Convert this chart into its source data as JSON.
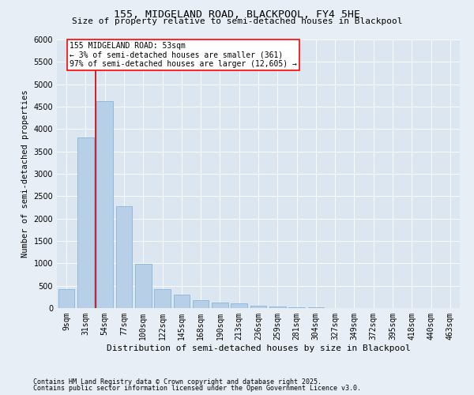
{
  "title1": "155, MIDGELAND ROAD, BLACKPOOL, FY4 5HE",
  "title2": "Size of property relative to semi-detached houses in Blackpool",
  "xlabel": "Distribution of semi-detached houses by size in Blackpool",
  "ylabel": "Number of semi-detached properties",
  "bar_color": "#b8cfe8",
  "bar_edge_color": "#7aadd4",
  "marker_color": "#cc0000",
  "marker_value": 53,
  "annotation_title": "155 MIDGELAND ROAD: 53sqm",
  "annotation_line1": "← 3% of semi-detached houses are smaller (361)",
  "annotation_line2": "97% of semi-detached houses are larger (12,605) →",
  "footnote1": "Contains HM Land Registry data © Crown copyright and database right 2025.",
  "footnote2": "Contains public sector information licensed under the Open Government Licence v3.0.",
  "bin_labels": [
    "9sqm",
    "31sqm",
    "54sqm",
    "77sqm",
    "100sqm",
    "122sqm",
    "145sqm",
    "168sqm",
    "190sqm",
    "213sqm",
    "236sqm",
    "259sqm",
    "281sqm",
    "304sqm",
    "327sqm",
    "349sqm",
    "372sqm",
    "395sqm",
    "418sqm",
    "440sqm",
    "463sqm"
  ],
  "bar_heights": [
    430,
    3820,
    4620,
    2270,
    980,
    430,
    300,
    170,
    130,
    100,
    50,
    30,
    20,
    10,
    5,
    5,
    3,
    2,
    2,
    1,
    1
  ],
  "ylim": [
    0,
    6000
  ],
  "yticks": [
    0,
    500,
    1000,
    1500,
    2000,
    2500,
    3000,
    3500,
    4000,
    4500,
    5000,
    5500,
    6000
  ],
  "background_color": "#e8eef5",
  "plot_bg_color": "#dce6f0",
  "title_fontsize": 9.5,
  "subtitle_fontsize": 8,
  "tick_fontsize": 7,
  "ylabel_fontsize": 7.5,
  "xlabel_fontsize": 8,
  "annotation_fontsize": 7,
  "footnote_fontsize": 6
}
